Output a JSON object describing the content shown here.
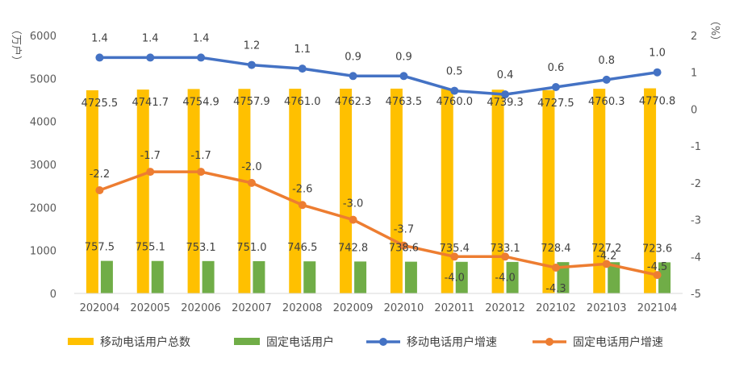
{
  "chart_data": {
    "type": "bar",
    "categories": [
      "202004",
      "202005",
      "202006",
      "202007",
      "202008",
      "202009",
      "202010",
      "202011",
      "202012",
      "202102",
      "202103",
      "202104"
    ],
    "series": [
      {
        "name": "移动电话用户总数",
        "kind": "bar",
        "axis": "left",
        "color": "#FFC000",
        "values": [
          4725.5,
          4741.7,
          4754.9,
          4757.9,
          4761.0,
          4762.3,
          4763.5,
          4760.0,
          4739.3,
          4727.5,
          4760.3,
          4770.8
        ],
        "labels": [
          "4725.5",
          "4741.7",
          "4754.9",
          "4757.9",
          "4761.0",
          "4762.3",
          "4763.5",
          "4760.0",
          "4739.3",
          "4727.5",
          "4760.3",
          "4770.8"
        ]
      },
      {
        "name": "固定电话用户",
        "kind": "bar",
        "axis": "left",
        "color": "#70AD47",
        "values": [
          757.5,
          755.1,
          753.1,
          751.0,
          746.5,
          742.8,
          738.6,
          735.4,
          733.1,
          728.4,
          727.2,
          723.6
        ],
        "labels": [
          "757.5",
          "755.1",
          "753.1",
          "751.0",
          "746.5",
          "742.8",
          "738.6",
          "735.4",
          "733.1",
          "728.4",
          "727.2",
          "723.6"
        ]
      },
      {
        "name": "移动电话用户增速",
        "kind": "line",
        "axis": "right",
        "color": "#4472C4",
        "values": [
          1.4,
          1.4,
          1.4,
          1.2,
          1.1,
          0.9,
          0.9,
          0.5,
          0.4,
          0.6,
          0.8,
          1.0
        ],
        "labels": [
          "1.4",
          "1.4",
          "1.4",
          "1.2",
          "1.1",
          "0.9",
          "0.9",
          "0.5",
          "0.4",
          "0.6",
          "0.8",
          "1.0"
        ]
      },
      {
        "name": "固定电话用户增速",
        "kind": "line",
        "axis": "right",
        "color": "#ED7D31",
        "values": [
          -2.2,
          -1.7,
          -1.7,
          -2.0,
          -2.6,
          -3.0,
          -3.7,
          -4.0,
          -4.0,
          -4.3,
          -4.2,
          -4.5
        ],
        "labels": [
          "-2.2",
          "-1.7",
          "-1.7",
          "-2.0",
          "-2.6",
          "-3.0",
          "-3.7",
          "-4.0",
          "-4.0",
          "-4.3",
          "-4.2",
          "-4.5"
        ]
      }
    ],
    "left_axis": {
      "label": "（万户）",
      "ylim": [
        0,
        6000
      ],
      "ticks": [
        "0",
        "1000",
        "2000",
        "3000",
        "4000",
        "5000",
        "6000"
      ]
    },
    "right_axis": {
      "label": "（%）",
      "ylim": [
        -5,
        2
      ],
      "ticks": [
        "-5",
        "-4",
        "-3",
        "-2",
        "-1",
        "0",
        "1",
        "2"
      ]
    },
    "grid": false,
    "legend": "bottom"
  }
}
